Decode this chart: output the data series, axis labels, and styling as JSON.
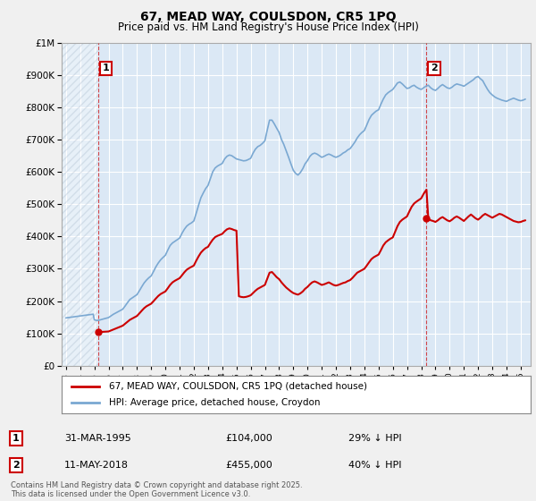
{
  "title": "67, MEAD WAY, COULSDON, CR5 1PQ",
  "subtitle": "Price paid vs. HM Land Registry's House Price Index (HPI)",
  "legend_line1": "67, MEAD WAY, COULSDON, CR5 1PQ (detached house)",
  "legend_line2": "HPI: Average price, detached house, Croydon",
  "annotation1_date": "31-MAR-1995",
  "annotation1_price": "£104,000",
  "annotation1_hpi": "29% ↓ HPI",
  "annotation1_year": 1995.25,
  "annotation1_value": 104000,
  "annotation2_date": "11-MAY-2018",
  "annotation2_price": "£455,000",
  "annotation2_hpi": "40% ↓ HPI",
  "annotation2_year": 2018.37,
  "annotation2_value": 455000,
  "red_color": "#cc0000",
  "blue_color": "#7aa8d2",
  "fig_bg": "#f0f0f0",
  "plot_bg": "#dbe8f5",
  "grid_color": "#ffffff",
  "footer": "Contains HM Land Registry data © Crown copyright and database right 2025.\nThis data is licensed under the Open Government Licence v3.0.",
  "ylim": [
    0,
    1000000
  ],
  "xlim_start": 1992.7,
  "xlim_end": 2025.7,
  "hatch_end": 1995.25,
  "hpi_x": [
    1993.0,
    1993.08,
    1993.17,
    1993.25,
    1993.33,
    1993.42,
    1993.5,
    1993.58,
    1993.67,
    1993.75,
    1993.83,
    1993.92,
    1994.0,
    1994.08,
    1994.17,
    1994.25,
    1994.33,
    1994.42,
    1994.5,
    1994.58,
    1994.67,
    1994.75,
    1994.83,
    1994.92,
    1995.0,
    1995.08,
    1995.17,
    1995.25,
    1995.33,
    1995.42,
    1995.5,
    1995.58,
    1995.67,
    1995.75,
    1995.83,
    1995.92,
    1996.0,
    1996.17,
    1996.33,
    1996.5,
    1996.67,
    1996.83,
    1997.0,
    1997.17,
    1997.33,
    1997.5,
    1997.67,
    1997.83,
    1998.0,
    1998.17,
    1998.33,
    1998.5,
    1998.67,
    1998.83,
    1999.0,
    1999.17,
    1999.33,
    1999.5,
    1999.67,
    1999.83,
    2000.0,
    2000.17,
    2000.33,
    2000.5,
    2000.67,
    2000.83,
    2001.0,
    2001.17,
    2001.33,
    2001.5,
    2001.67,
    2001.83,
    2002.0,
    2002.17,
    2002.33,
    2002.5,
    2002.67,
    2002.83,
    2003.0,
    2003.17,
    2003.33,
    2003.5,
    2003.67,
    2003.83,
    2004.0,
    2004.17,
    2004.33,
    2004.5,
    2004.67,
    2004.83,
    2005.0,
    2005.17,
    2005.33,
    2005.5,
    2005.67,
    2005.83,
    2006.0,
    2006.17,
    2006.33,
    2006.5,
    2006.67,
    2006.83,
    2007.0,
    2007.17,
    2007.33,
    2007.5,
    2007.67,
    2007.83,
    2008.0,
    2008.17,
    2008.33,
    2008.5,
    2008.67,
    2008.83,
    2009.0,
    2009.17,
    2009.33,
    2009.5,
    2009.67,
    2009.83,
    2010.0,
    2010.17,
    2010.33,
    2010.5,
    2010.67,
    2010.83,
    2011.0,
    2011.17,
    2011.33,
    2011.5,
    2011.67,
    2011.83,
    2012.0,
    2012.17,
    2012.33,
    2012.5,
    2012.67,
    2012.83,
    2013.0,
    2013.17,
    2013.33,
    2013.5,
    2013.67,
    2013.83,
    2014.0,
    2014.17,
    2014.33,
    2014.5,
    2014.67,
    2014.83,
    2015.0,
    2015.17,
    2015.33,
    2015.5,
    2015.67,
    2015.83,
    2016.0,
    2016.17,
    2016.33,
    2016.5,
    2016.67,
    2016.83,
    2017.0,
    2017.17,
    2017.33,
    2017.5,
    2017.67,
    2017.83,
    2018.0,
    2018.17,
    2018.33,
    2018.5,
    2018.67,
    2018.83,
    2019.0,
    2019.17,
    2019.33,
    2019.5,
    2019.67,
    2019.83,
    2020.0,
    2020.17,
    2020.33,
    2020.5,
    2020.67,
    2020.83,
    2021.0,
    2021.17,
    2021.33,
    2021.5,
    2021.67,
    2021.83,
    2022.0,
    2022.17,
    2022.33,
    2022.5,
    2022.67,
    2022.83,
    2023.0,
    2023.17,
    2023.33,
    2023.5,
    2023.67,
    2023.83,
    2024.0,
    2024.17,
    2024.33,
    2024.5,
    2024.67,
    2024.83,
    2025.0,
    2025.17,
    2025.33
  ],
  "hpi_y": [
    148000,
    148500,
    149000,
    149500,
    150000,
    150500,
    151000,
    151500,
    152000,
    152500,
    153000,
    153500,
    154000,
    154500,
    155000,
    155500,
    156000,
    156500,
    157000,
    157500,
    158000,
    158500,
    159000,
    159500,
    142000,
    141000,
    140000,
    140000,
    141000,
    142000,
    143000,
    144000,
    145000,
    146000,
    147000,
    148000,
    149000,
    154000,
    159000,
    163000,
    167000,
    171000,
    175000,
    185000,
    195000,
    205000,
    210000,
    215000,
    220000,
    232000,
    244000,
    256000,
    265000,
    272000,
    278000,
    292000,
    306000,
    318000,
    328000,
    335000,
    342000,
    358000,
    372000,
    380000,
    385000,
    390000,
    395000,
    410000,
    422000,
    432000,
    438000,
    442000,
    448000,
    472000,
    496000,
    520000,
    535000,
    548000,
    558000,
    580000,
    600000,
    612000,
    618000,
    622000,
    626000,
    640000,
    648000,
    652000,
    650000,
    645000,
    640000,
    638000,
    636000,
    634000,
    635000,
    638000,
    642000,
    658000,
    670000,
    678000,
    682000,
    688000,
    696000,
    730000,
    760000,
    760000,
    748000,
    735000,
    722000,
    700000,
    685000,
    665000,
    645000,
    625000,
    605000,
    595000,
    590000,
    598000,
    610000,
    625000,
    635000,
    648000,
    655000,
    658000,
    655000,
    650000,
    645000,
    648000,
    652000,
    655000,
    652000,
    648000,
    645000,
    648000,
    652000,
    658000,
    662000,
    668000,
    672000,
    682000,
    692000,
    705000,
    715000,
    722000,
    728000,
    745000,
    762000,
    775000,
    782000,
    788000,
    792000,
    810000,
    825000,
    838000,
    845000,
    850000,
    855000,
    865000,
    875000,
    878000,
    872000,
    865000,
    858000,
    860000,
    865000,
    868000,
    862000,
    858000,
    855000,
    860000,
    865000,
    868000,
    860000,
    855000,
    852000,
    858000,
    865000,
    870000,
    865000,
    860000,
    858000,
    862000,
    868000,
    872000,
    870000,
    868000,
    865000,
    870000,
    875000,
    880000,
    885000,
    892000,
    895000,
    888000,
    882000,
    868000,
    855000,
    845000,
    838000,
    832000,
    828000,
    825000,
    822000,
    820000,
    818000,
    822000,
    825000,
    828000,
    825000,
    822000,
    820000,
    822000,
    825000
  ],
  "price_x": [
    1995.25,
    1995.33,
    1995.42,
    1995.5,
    1995.58,
    1995.67,
    1995.75,
    1995.83,
    1995.92,
    1996.0,
    1996.17,
    1996.33,
    1996.5,
    1996.67,
    1996.83,
    1997.0,
    1997.17,
    1997.33,
    1997.5,
    1997.67,
    1997.83,
    1998.0,
    1998.17,
    1998.33,
    1998.5,
    1998.67,
    1998.83,
    1999.0,
    1999.17,
    1999.33,
    1999.5,
    1999.67,
    1999.83,
    2000.0,
    2000.17,
    2000.33,
    2000.5,
    2000.67,
    2000.83,
    2001.0,
    2001.17,
    2001.33,
    2001.5,
    2001.67,
    2001.83,
    2002.0,
    2002.17,
    2002.33,
    2002.5,
    2002.67,
    2002.83,
    2003.0,
    2003.17,
    2003.33,
    2003.5,
    2003.67,
    2003.83,
    2004.0,
    2004.17,
    2004.33,
    2004.5,
    2004.67,
    2004.83,
    2005.0,
    2005.17,
    2005.33,
    2005.5,
    2005.67,
    2005.83,
    2006.0,
    2006.17,
    2006.33,
    2006.5,
    2006.67,
    2006.83,
    2007.0,
    2007.17,
    2007.33,
    2007.5,
    2007.67,
    2007.83,
    2008.0,
    2008.17,
    2008.33,
    2008.5,
    2008.67,
    2008.83,
    2009.0,
    2009.17,
    2009.33,
    2009.5,
    2009.67,
    2009.83,
    2010.0,
    2010.17,
    2010.33,
    2010.5,
    2010.67,
    2010.83,
    2011.0,
    2011.17,
    2011.33,
    2011.5,
    2011.67,
    2011.83,
    2012.0,
    2012.17,
    2012.33,
    2012.5,
    2012.67,
    2012.83,
    2013.0,
    2013.17,
    2013.33,
    2013.5,
    2013.67,
    2013.83,
    2014.0,
    2014.17,
    2014.33,
    2014.5,
    2014.67,
    2014.83,
    2015.0,
    2015.17,
    2015.33,
    2015.5,
    2015.67,
    2015.83,
    2016.0,
    2016.17,
    2016.33,
    2016.5,
    2016.67,
    2016.83,
    2017.0,
    2017.17,
    2017.33,
    2017.5,
    2017.67,
    2017.83,
    2018.0,
    2018.17,
    2018.37,
    2018.5,
    2018.67,
    2018.83,
    2019.0,
    2019.17,
    2019.33,
    2019.5,
    2019.67,
    2019.83,
    2020.0,
    2020.17,
    2020.33,
    2020.5,
    2020.67,
    2020.83,
    2021.0,
    2021.17,
    2021.33,
    2021.5,
    2021.67,
    2021.83,
    2022.0,
    2022.17,
    2022.33,
    2022.5,
    2022.67,
    2022.83,
    2023.0,
    2023.17,
    2023.33,
    2023.5,
    2023.67,
    2023.83,
    2024.0,
    2024.17,
    2024.33,
    2024.5,
    2024.67,
    2024.83,
    2025.0,
    2025.17,
    2025.33
  ],
  "price_y": [
    104000,
    104200,
    104400,
    104600,
    104800,
    105000,
    105200,
    105400,
    105600,
    106000,
    109000,
    112000,
    115000,
    118000,
    121000,
    124000,
    130000,
    136000,
    142000,
    146000,
    150000,
    154000,
    162000,
    170000,
    178000,
    184000,
    188000,
    192000,
    200000,
    208000,
    216000,
    222000,
    226000,
    230000,
    240000,
    250000,
    258000,
    263000,
    267000,
    271000,
    280000,
    289000,
    297000,
    302000,
    306000,
    310000,
    325000,
    338000,
    350000,
    358000,
    364000,
    368000,
    380000,
    390000,
    398000,
    402000,
    405000,
    408000,
    416000,
    422000,
    425000,
    423000,
    420000,
    418000,
    215000,
    213000,
    212000,
    213000,
    215000,
    218000,
    225000,
    232000,
    238000,
    242000,
    246000,
    250000,
    270000,
    288000,
    290000,
    282000,
    274000,
    268000,
    258000,
    250000,
    242000,
    236000,
    230000,
    225000,
    222000,
    220000,
    224000,
    230000,
    238000,
    244000,
    252000,
    258000,
    261000,
    258000,
    254000,
    250000,
    252000,
    255000,
    258000,
    254000,
    250000,
    248000,
    250000,
    253000,
    256000,
    258000,
    262000,
    265000,
    272000,
    280000,
    288000,
    292000,
    296000,
    300000,
    310000,
    320000,
    330000,
    336000,
    340000,
    344000,
    358000,
    372000,
    382000,
    388000,
    393000,
    397000,
    415000,
    432000,
    445000,
    452000,
    457000,
    462000,
    478000,
    492000,
    502000,
    508000,
    513000,
    518000,
    532000,
    545000,
    455000,
    450000,
    448000,
    445000,
    450000,
    456000,
    460000,
    455000,
    450000,
    447000,
    452000,
    458000,
    462000,
    458000,
    453000,
    448000,
    455000,
    462000,
    468000,
    462000,
    456000,
    452000,
    458000,
    465000,
    470000,
    466000,
    462000,
    458000,
    462000,
    466000,
    470000,
    468000,
    464000,
    460000,
    456000,
    452000,
    448000,
    446000,
    444000,
    445000,
    448000,
    450000
  ]
}
